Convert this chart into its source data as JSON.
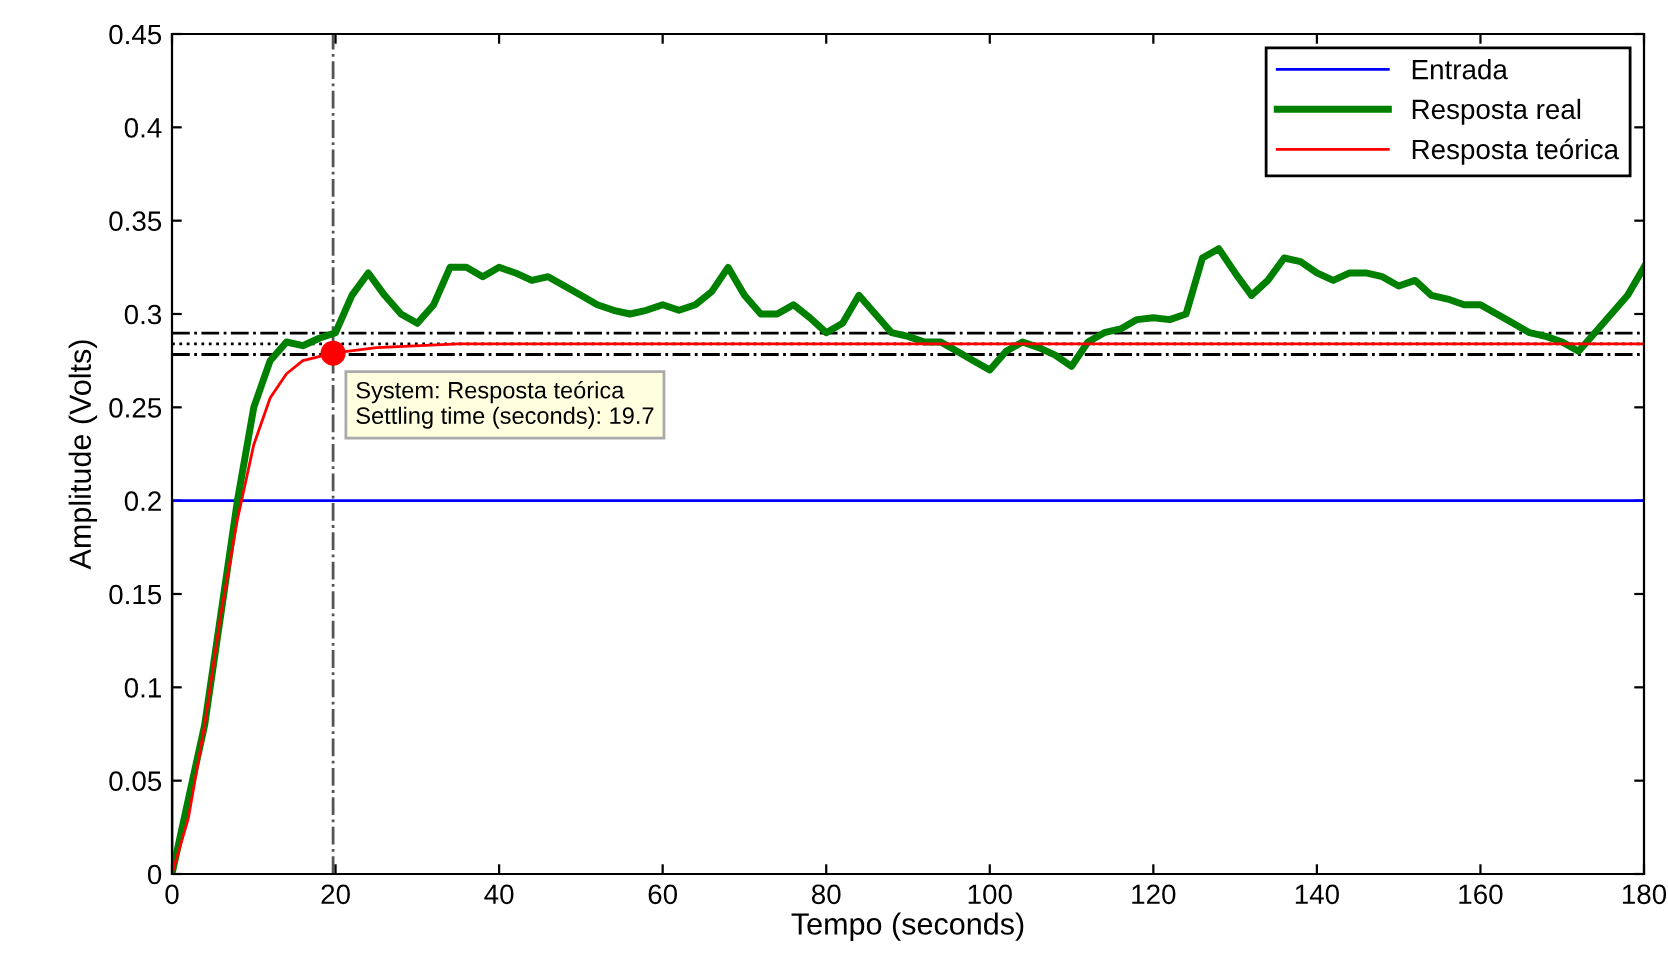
{
  "chart_data": {
    "type": "line",
    "xlabel": "Tempo (seconds)",
    "ylabel": "Amplitude (Volts)",
    "xlim": [
      0,
      180
    ],
    "ylim": [
      0,
      0.45
    ],
    "xticks": [
      0,
      20,
      40,
      60,
      80,
      100,
      120,
      140,
      160,
      180
    ],
    "yticks": [
      0,
      {
        "value": 0.05,
        "label": "0.05"
      },
      {
        "value": 0.1,
        "label": "0.1"
      },
      {
        "value": 0.15,
        "label": "0.15"
      },
      {
        "value": 0.2,
        "label": "0.2"
      },
      {
        "value": 0.25,
        "label": "0.25"
      },
      {
        "value": 0.3,
        "label": "0.3"
      },
      {
        "value": 0.35,
        "label": "0.35"
      },
      {
        "value": 0.4,
        "label": "0.4"
      },
      {
        "value": 0.45,
        "label": "0.45"
      }
    ],
    "grid": false,
    "legend": "top right",
    "series": [
      {
        "name": "Entrada",
        "color": "#0000ff",
        "x": [
          0,
          0,
          180
        ],
        "values": [
          0,
          0.2,
          0.2
        ]
      },
      {
        "name": "Resposta real",
        "color": "#008000",
        "x": [
          0,
          4,
          8,
          10,
          12,
          14,
          16,
          18,
          20,
          22,
          24,
          26,
          28,
          30,
          32,
          34,
          36,
          38,
          40,
          42,
          44,
          46,
          48,
          50,
          52,
          54,
          56,
          58,
          60,
          62,
          64,
          66,
          68,
          70,
          72,
          74,
          76,
          78,
          80,
          82,
          84,
          86,
          88,
          90,
          92,
          94,
          96,
          98,
          100,
          102,
          104,
          106,
          108,
          110,
          112,
          114,
          116,
          118,
          120,
          122,
          124,
          126,
          128,
          130,
          132,
          134,
          136,
          138,
          140,
          142,
          144,
          146,
          148,
          150,
          152,
          154,
          156,
          158,
          160,
          162,
          164,
          166,
          168,
          170,
          172,
          174,
          176,
          178,
          180
        ],
        "values": [
          0,
          0.08,
          0.2,
          0.25,
          0.275,
          0.285,
          0.283,
          0.287,
          0.29,
          0.31,
          0.322,
          0.31,
          0.3,
          0.295,
          0.305,
          0.325,
          0.325,
          0.32,
          0.325,
          0.322,
          0.318,
          0.32,
          0.315,
          0.31,
          0.305,
          0.302,
          0.3,
          0.302,
          0.305,
          0.302,
          0.305,
          0.312,
          0.325,
          0.31,
          0.3,
          0.3,
          0.305,
          0.298,
          0.29,
          0.295,
          0.31,
          0.3,
          0.29,
          0.288,
          0.285,
          0.285,
          0.28,
          0.275,
          0.27,
          0.28,
          0.285,
          0.282,
          0.278,
          0.272,
          0.285,
          0.29,
          0.292,
          0.297,
          0.298,
          0.297,
          0.3,
          0.33,
          0.335,
          0.322,
          0.31,
          0.318,
          0.33,
          0.328,
          0.322,
          0.318,
          0.322,
          0.322,
          0.32,
          0.315,
          0.318,
          0.31,
          0.308,
          0.305,
          0.305,
          0.3,
          0.295,
          0.29,
          0.288,
          0.285,
          0.28,
          0.29,
          0.3,
          0.31,
          0.325
        ]
      },
      {
        "name": "Resposta teórica",
        "color": "#ff0000",
        "x": [
          0,
          2,
          4,
          6,
          8,
          10,
          12,
          14,
          16,
          19.7,
          25,
          35,
          180
        ],
        "values": [
          0,
          0.03,
          0.08,
          0.14,
          0.19,
          0.23,
          0.255,
          0.268,
          0.275,
          0.279,
          0.282,
          0.284,
          0.284
        ]
      }
    ],
    "ref_lines": [
      {
        "axis": "y",
        "value": 0.2897,
        "color": "#000000",
        "line_style": "dashdot"
      },
      {
        "axis": "y",
        "value": 0.2783,
        "color": "#000000",
        "line_style": "dashdot"
      },
      {
        "axis": "y",
        "value": 0.284,
        "color": "#000000",
        "line_style": "dotted"
      },
      {
        "axis": "x",
        "value": 19.7,
        "color": "#555555",
        "line_style": "dashdot"
      }
    ],
    "annotations": [
      {
        "text": "System: Resposta teórica\nSettling time (seconds): 19.7",
        "x": 19.7,
        "y": 0.279
      }
    ]
  }
}
